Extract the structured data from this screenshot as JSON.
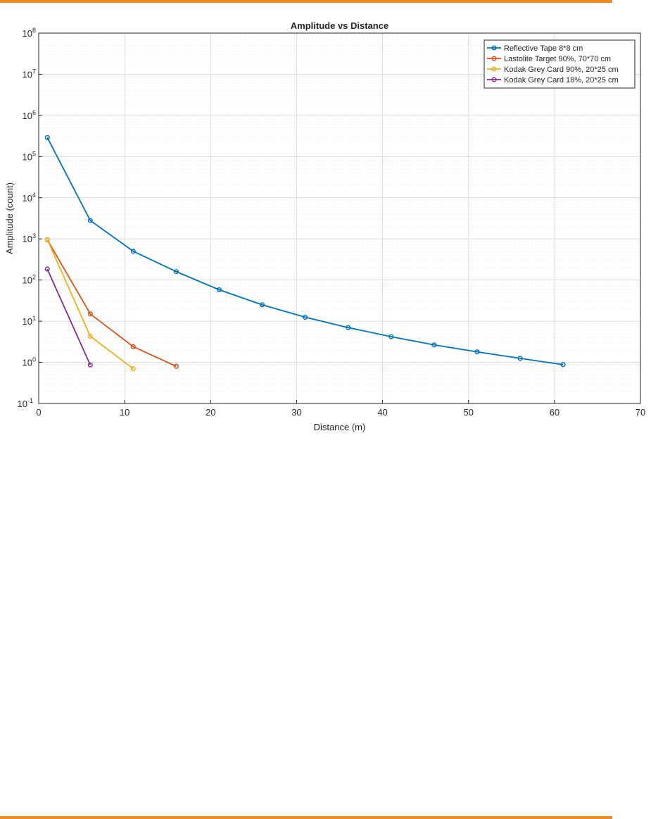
{
  "page": {
    "accent_color": "#f08a1c"
  },
  "chart_data": {
    "type": "line",
    "title": "Amplitude vs Distance",
    "xlabel": "Distance (m)",
    "ylabel": "Amplitude (count)",
    "xlim": [
      0,
      70
    ],
    "ylim": [
      0.1,
      100000000
    ],
    "yscale": "log",
    "x_ticks": [
      "0",
      "10",
      "20",
      "30",
      "40",
      "50",
      "60",
      "70"
    ],
    "y_tick_exponents": [
      "-1",
      "0",
      "1",
      "2",
      "3",
      "4",
      "5",
      "6",
      "7",
      "8"
    ],
    "y_tick_base": "10",
    "grid": true,
    "minor_grid": true,
    "legend_position": "top-right",
    "series": [
      {
        "name": "Reflective Tape 8*8 cm",
        "color": "#0072bd",
        "x": [
          1,
          6,
          11,
          16,
          21,
          26,
          31,
          36,
          41,
          46,
          51,
          56,
          61
        ],
        "y": [
          290000,
          2800,
          500,
          160,
          58,
          25,
          12.5,
          7,
          4.2,
          2.65,
          1.8,
          1.25,
          0.88
        ]
      },
      {
        "name": "Lastolite Target 90%, 70*70 cm",
        "color": "#d95319",
        "x": [
          1,
          6,
          11,
          16
        ],
        "y": [
          950,
          15,
          2.4,
          0.8
        ]
      },
      {
        "name": "Kodak Grey Card 90%, 20*25 cm",
        "color": "#edb120",
        "x": [
          1,
          6,
          11
        ],
        "y": [
          960,
          4.3,
          0.7
        ]
      },
      {
        "name": "Kodak Grey Card 18%, 20*25 cm",
        "color": "#7e2f8e",
        "x": [
          1,
          6
        ],
        "y": [
          185,
          0.86
        ]
      }
    ]
  }
}
